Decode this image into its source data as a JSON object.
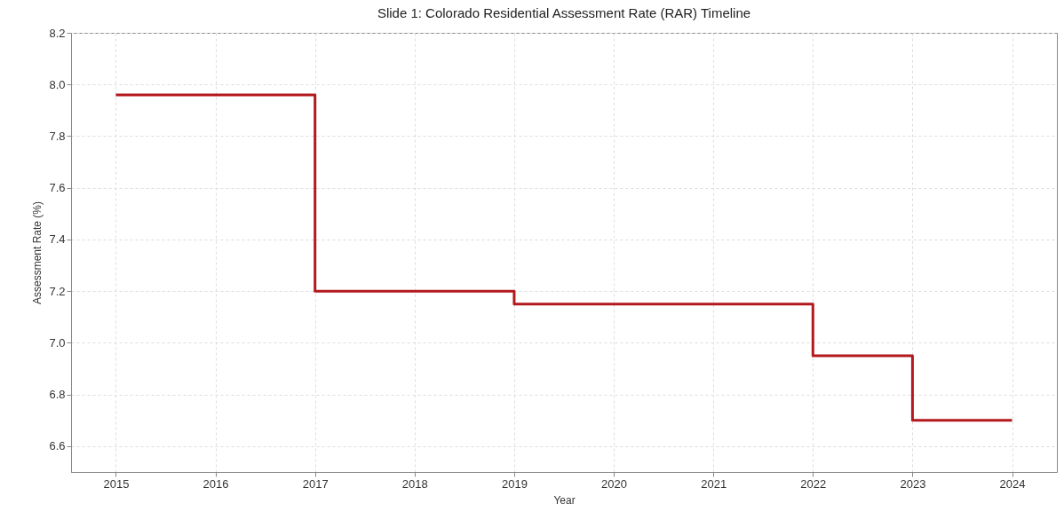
{
  "chart_data": {
    "type": "step",
    "title": "Slide 1: Colorado Residential Assessment Rate (RAR) Timeline",
    "xlabel": "Year",
    "ylabel": "Assessment Rate (%)",
    "x": [
      2015,
      2017,
      2019,
      2022,
      2023,
      2024
    ],
    "series": [
      {
        "color": "#b3191c",
        "values": [
          7.96,
          7.2,
          7.15,
          6.95,
          6.7,
          6.7
        ]
      }
    ],
    "xlim": [
      2014.55,
      2024.45
    ],
    "xticks": [
      2015,
      2016,
      2017,
      2018,
      2019,
      2020,
      2021,
      2022,
      2023,
      2024
    ],
    "ylim": [
      6.5,
      8.2
    ],
    "yticks": [
      {
        "value": 6.6,
        "label": "6.6"
      },
      {
        "value": 6.8,
        "label": "6.8"
      },
      {
        "value": 7.0,
        "label": "7.0"
      },
      {
        "value": 7.2,
        "label": "7.2"
      },
      {
        "value": 7.4,
        "label": "7.4"
      },
      {
        "value": 7.6,
        "label": "7.6"
      },
      {
        "value": 7.8,
        "label": "7.8"
      },
      {
        "value": 8.0,
        "label": "8.0"
      },
      {
        "value": 8.2,
        "label": "8.2"
      }
    ],
    "grid": true
  }
}
